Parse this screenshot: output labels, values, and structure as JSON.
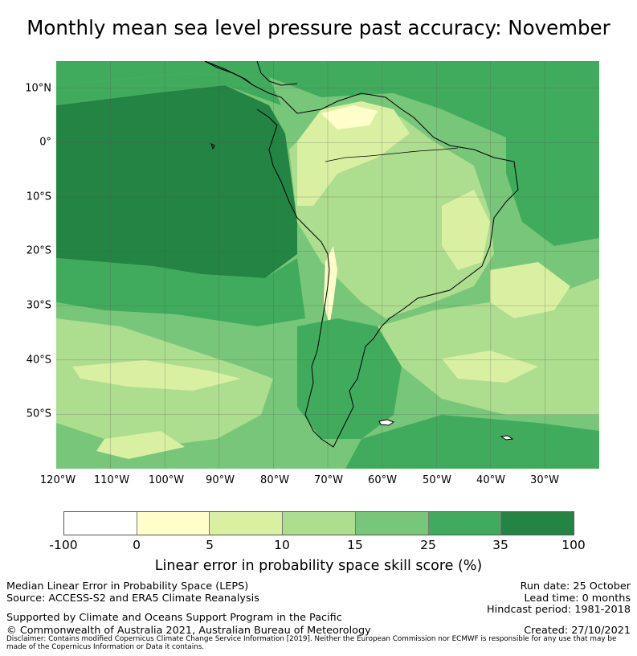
{
  "title": "Monthly mean sea level pressure past accuracy: November",
  "map": {
    "lat_labels": [
      "10°N",
      "0°",
      "10°S",
      "20°S",
      "30°S",
      "40°S",
      "50°S"
    ],
    "lon_labels": [
      "120°W",
      "110°W",
      "100°W",
      "90°W",
      "80°W",
      "70°W",
      "60°W",
      "50°W",
      "40°W",
      "30°W"
    ],
    "extent": {
      "lon_min": -120,
      "lon_max": -20,
      "lat_min": -60,
      "lat_max": 15
    }
  },
  "colorbar": {
    "ticks": [
      "-100",
      "0",
      "5",
      "10",
      "15",
      "25",
      "35",
      "100"
    ],
    "colors": [
      "#ffffff",
      "#ffffcc",
      "#d9f0a3",
      "#addd8e",
      "#78c679",
      "#41ab5d",
      "#238443"
    ],
    "label": "Linear error in probability space skill score (%)"
  },
  "footer": {
    "method": "Median Linear Error in Probability Space (LEPS)",
    "source": "Source: ACCESS-S2 and ERA5 Climate Reanalysis",
    "support": "Supported by Climate and Oceans Support Program in the Pacific",
    "copyright": "© Commonwealth of Australia 2021, Australian Bureau of Meteorology",
    "disclaimer": "Disclaimer: Contains modified Copernicus Climate Change Service Information [2019]. Neither the European Commission nor ECMWF is responsible for any use that may be made of the Copernicus Information or Data it contains.",
    "run_date": "Run date: 25 October",
    "lead_time": "Lead time: 0 months",
    "hindcast": "Hindcast period: 1981-2018",
    "created": "Created: 27/10/2021"
  }
}
